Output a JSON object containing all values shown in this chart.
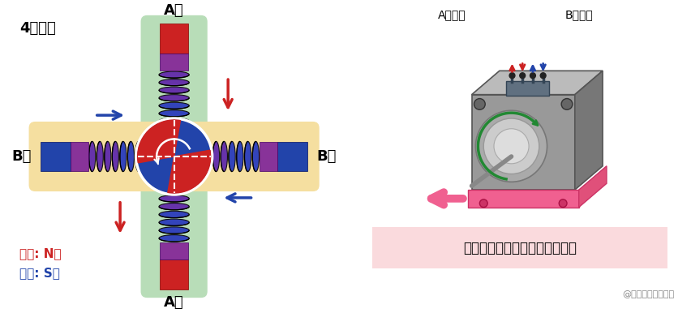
{
  "bg_color": "#ffffff",
  "title_left": "4极电机",
  "label_A_top": "A相",
  "label_A_bot": "A相",
  "label_B_left": "B相",
  "label_B_right": "B相",
  "legend_red": "红色: N极",
  "legend_blue": "蓝色: S极",
  "label_A_input": "A相输入",
  "label_B_input": "B相输入",
  "caption": "转子转动并连续执行步进操作。",
  "watermark": "@稀土掘金技术社区",
  "green_bg": "#b8ddb8",
  "orange_bg": "#f5dfa0",
  "red_color": "#cc2222",
  "blue_color": "#2244aa",
  "purple_color": "#883399",
  "pink_color": "#f06090",
  "caption_bg": "#fadadd",
  "gray_motor": "#999999",
  "gray_motor_top": "#bbbbbb",
  "gray_motor_right": "#777777"
}
